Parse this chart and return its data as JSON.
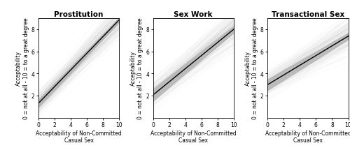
{
  "panels": [
    {
      "title": "Prostitution",
      "intercept": 1.3,
      "slope": 0.755,
      "ci_width_start": 0.32,
      "ci_width_end": 0.2,
      "bg_lines_intercept_std": 0.5,
      "bg_lines_slope_std": 0.07
    },
    {
      "title": "Sex Work",
      "intercept": 2.05,
      "slope": 0.595,
      "ci_width_start": 0.52,
      "ci_width_end": 0.3,
      "bg_lines_intercept_std": 0.6,
      "bg_lines_slope_std": 0.07
    },
    {
      "title": "Transactional Sex",
      "intercept": 2.98,
      "slope": 0.44,
      "ci_width_start": 0.48,
      "ci_width_end": 0.28,
      "bg_lines_intercept_std": 0.55,
      "bg_lines_slope_std": 0.06
    }
  ],
  "xlim": [
    0,
    10
  ],
  "ylim": [
    0,
    9
  ],
  "xticks": [
    0,
    2,
    4,
    6,
    8,
    10
  ],
  "yticks": [
    2,
    4,
    6,
    8
  ],
  "xlabel_line1": "Acceptability of Non-Committed",
  "xlabel_line2": "Casual Sex",
  "ylabel_line1": "Acceptability",
  "ylabel_line2": "0 = not at all - 10 = to a great degree",
  "line_color": "black",
  "ci_color": "#b0b0b0",
  "bg_color": "white",
  "bg_line_color": "#cccccc",
  "title_fontsize": 7.5,
  "label_fontsize": 5.5,
  "tick_fontsize": 5.5,
  "n_bg_lines": 300
}
